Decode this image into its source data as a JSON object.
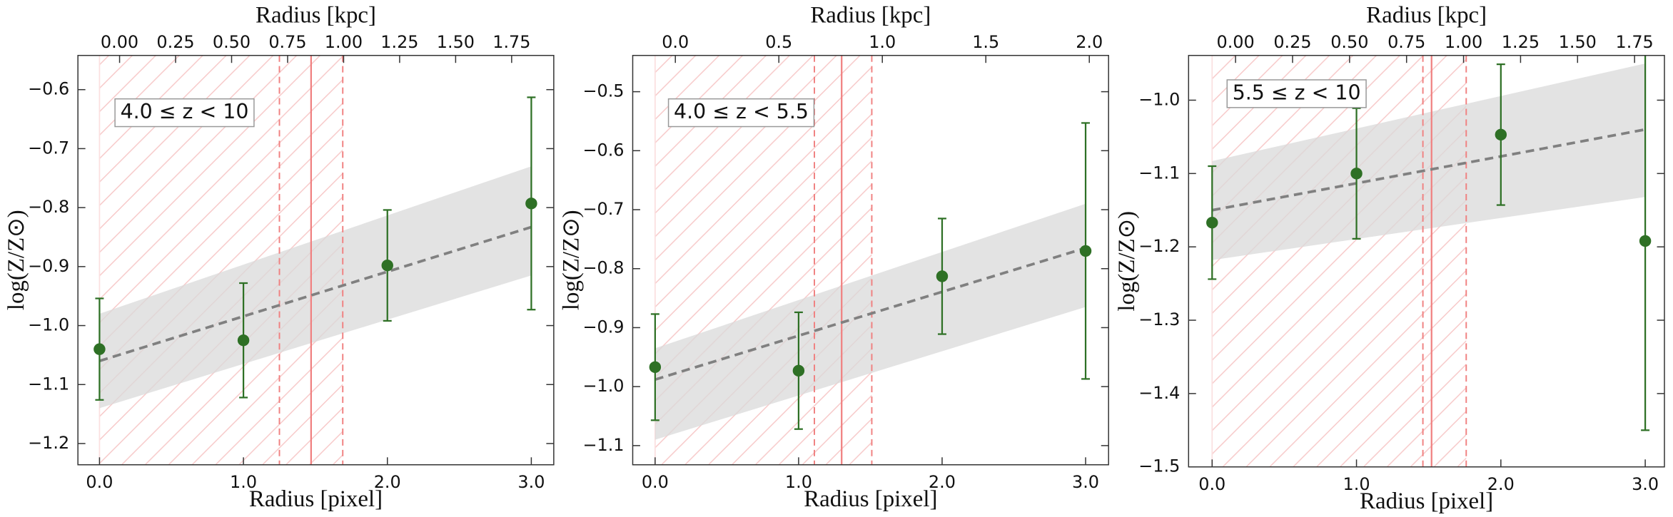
{
  "chart_data": [
    {
      "type": "scatter",
      "xlabel": "Radius [pixel]",
      "x2label": "Radius [kpc]",
      "ylabel": "log(Z/Z⊙)",
      "annotation": "4.0 ≤ z < 10",
      "x": [
        0,
        1,
        2,
        3
      ],
      "series": [
        {
          "color": "#2e7025",
          "values": [
            -1.04,
            -1.025,
            -0.898,
            -0.793
          ],
          "errors": [
            0.086,
            0.097,
            0.094,
            0.18
          ]
        }
      ],
      "fit": {
        "color": "#808080",
        "x": [
          0,
          3
        ],
        "y": [
          -1.06,
          -0.833
        ]
      },
      "band": {
        "color": "#d9d9d9",
        "x": [
          0,
          3
        ],
        "lower": [
          -1.14,
          -0.915
        ],
        "upper": [
          -0.98,
          -0.73
        ]
      },
      "vlines": {
        "color": "#f08080",
        "solid": 1.47,
        "dashed": [
          1.25,
          1.69
        ]
      },
      "hatch": [
        0,
        1.69
      ],
      "xlim": [
        -0.15,
        3.156
      ],
      "ylim": [
        -1.236,
        -0.542
      ],
      "xticks": [
        {
          "value": 0,
          "label": "0.0"
        },
        {
          "value": 1,
          "label": "1.0"
        },
        {
          "value": 2,
          "label": "2.0"
        },
        {
          "value": 3,
          "label": "3.0"
        }
      ],
      "yticks": [
        {
          "value": -1.2,
          "label": "−1.2"
        },
        {
          "value": -1.1,
          "label": "−1.1"
        },
        {
          "value": -1.0,
          "label": "−1.0"
        },
        {
          "value": -0.9,
          "label": "−0.9"
        },
        {
          "value": -0.8,
          "label": "−0.8"
        },
        {
          "value": -0.7,
          "label": "−0.7"
        },
        {
          "value": -0.6,
          "label": "−0.6"
        }
      ],
      "x2lim": [
        -0.186,
        1.938
      ],
      "x2ticks": [
        {
          "value": 0,
          "label": "0.00"
        },
        0.25,
        {
          "value": 0.5,
          "label": "0.50"
        },
        0.75,
        {
          "value": 1,
          "label": "1.00"
        },
        1.25,
        {
          "value": 1.5,
          "label": "1.50"
        },
        1.75
      ]
    },
    {
      "type": "scatter",
      "xlabel": "Radius [pixel]",
      "x2label": "Radius [kpc]",
      "ylabel": "log(Z/Z⊙)",
      "annotation": "4.0 ≤ z < 5.5",
      "x": [
        0,
        1,
        2,
        3
      ],
      "series": [
        {
          "color": "#2e7025",
          "values": [
            -0.967,
            -0.973,
            -0.813,
            -0.77
          ],
          "errors": [
            0.09,
            0.099,
            0.098,
            0.217
          ]
        }
      ],
      "fit": {
        "color": "#808080",
        "x": [
          0,
          3
        ],
        "y": [
          -0.988,
          -0.765
        ]
      },
      "band": {
        "color": "#d9d9d9",
        "x": [
          0,
          3
        ],
        "lower": [
          -1.09,
          -0.865
        ],
        "upper": [
          -0.935,
          -0.69
        ]
      },
      "vlines": {
        "color": "#f08080",
        "solid": 1.3,
        "dashed": [
          1.11,
          1.51
        ]
      },
      "hatch": [
        0,
        1.51
      ],
      "xlim": [
        -0.156,
        3.16
      ],
      "ylim": [
        -1.1325,
        -0.4385
      ],
      "xticks": [
        {
          "value": 0,
          "label": "0.0"
        },
        {
          "value": 1,
          "label": "1.0"
        },
        {
          "value": 2,
          "label": "2.0"
        },
        {
          "value": 3,
          "label": "3.0"
        }
      ],
      "yticks": [
        {
          "value": -1.1,
          "label": "−1.1"
        },
        {
          "value": -1.0,
          "label": "−1.0"
        },
        {
          "value": -0.9,
          "label": "−0.9"
        },
        {
          "value": -0.8,
          "label": "−0.8"
        },
        {
          "value": -0.7,
          "label": "−0.7"
        },
        {
          "value": -0.6,
          "label": "−0.6"
        },
        {
          "value": -0.5,
          "label": "−0.5"
        }
      ],
      "x2lim": [
        -0.206,
        2.093
      ],
      "x2ticks": [
        {
          "value": 0,
          "label": "0.0"
        },
        0.5,
        {
          "value": 1,
          "label": "1.0"
        },
        1.5,
        {
          "value": 2,
          "label": "2.0"
        }
      ]
    },
    {
      "type": "scatter",
      "xlabel": "Radius [pixel]",
      "x2label": "Radius [kpc]",
      "ylabel": "log(Z/Z⊙)",
      "annotation": "5.5 ≤ z < 10",
      "x": [
        0,
        1,
        2,
        3
      ],
      "series": [
        {
          "color": "#2e7025",
          "values": [
            -1.167,
            -1.1,
            -1.047,
            -1.192
          ],
          "errors": [
            0.077,
            0.089,
            0.096,
            0.258
          ]
        }
      ],
      "fit": {
        "color": "#808080",
        "x": [
          0,
          3
        ],
        "y": [
          -1.15,
          -1.04
        ]
      },
      "band": {
        "color": "#d9d9d9",
        "x": [
          0,
          3
        ],
        "lower": [
          -1.218,
          -1.132
        ],
        "upper": [
          -1.083,
          -0.95
        ]
      },
      "vlines": {
        "color": "#f08080",
        "solid": 1.52,
        "dashed": [
          1.46,
          1.76
        ]
      },
      "hatch": [
        0,
        1.76
      ],
      "xlim": [
        -0.163,
        3.133
      ],
      "ylim": [
        -1.5,
        -0.939
      ],
      "xticks": [
        {
          "value": 0,
          "label": "0.0"
        },
        {
          "value": 1,
          "label": "1.0"
        },
        {
          "value": 2,
          "label": "2.0"
        },
        {
          "value": 3,
          "label": "3.0"
        }
      ],
      "yticks": [
        {
          "value": -1.5,
          "label": "−1.5"
        },
        {
          "value": -1.4,
          "label": "−1.4"
        },
        {
          "value": -1.3,
          "label": "−1.3"
        },
        {
          "value": -1.2,
          "label": "−1.2"
        },
        {
          "value": -1.1,
          "label": "−1.1"
        },
        {
          "value": -1.0,
          "label": "−1.0"
        }
      ],
      "x2lim": [
        -0.206,
        1.881
      ],
      "x2ticks": [
        {
          "value": 0,
          "label": "0.00"
        },
        0.25,
        {
          "value": 0.5,
          "label": "0.50"
        },
        0.75,
        {
          "value": 1,
          "label": "1.00"
        },
        1.25,
        {
          "value": 1.5,
          "label": "1.50"
        },
        1.75
      ]
    }
  ]
}
